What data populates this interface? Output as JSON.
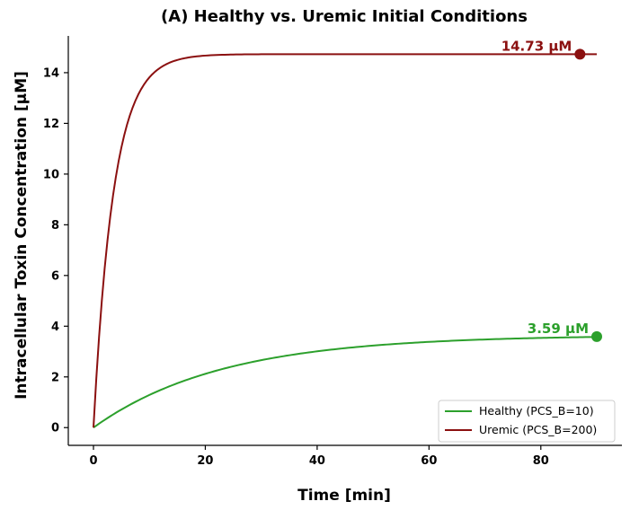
{
  "chart_data": {
    "type": "line",
    "title": "(A) Healthy vs. Uremic Initial Conditions",
    "xlabel": "Time [min]",
    "ylabel": "Intracellular Toxin Concentration [μM]",
    "xlim": [
      -4.5,
      94.5
    ],
    "ylim": [
      -0.7,
      15.45
    ],
    "xticks": [
      0,
      20,
      40,
      60,
      80
    ],
    "yticks": [
      0,
      2,
      4,
      6,
      8,
      10,
      12,
      14
    ],
    "grid": false,
    "legend_position": "bottom-right",
    "series": [
      {
        "name": "Healthy (PCS_B=10)",
        "color": "#2ca02c",
        "t_end": 90,
        "steady": 3.65,
        "tau": 23,
        "end_point": [
          90,
          3.59
        ],
        "end_label": "3.59 μM"
      },
      {
        "name": "Uremic (PCS_B=200)",
        "color": "#8b1010",
        "t_end": 90,
        "steady": 14.73,
        "tau": 3.6,
        "end_point": [
          87,
          14.73
        ],
        "end_label": "14.73 μM"
      }
    ]
  }
}
